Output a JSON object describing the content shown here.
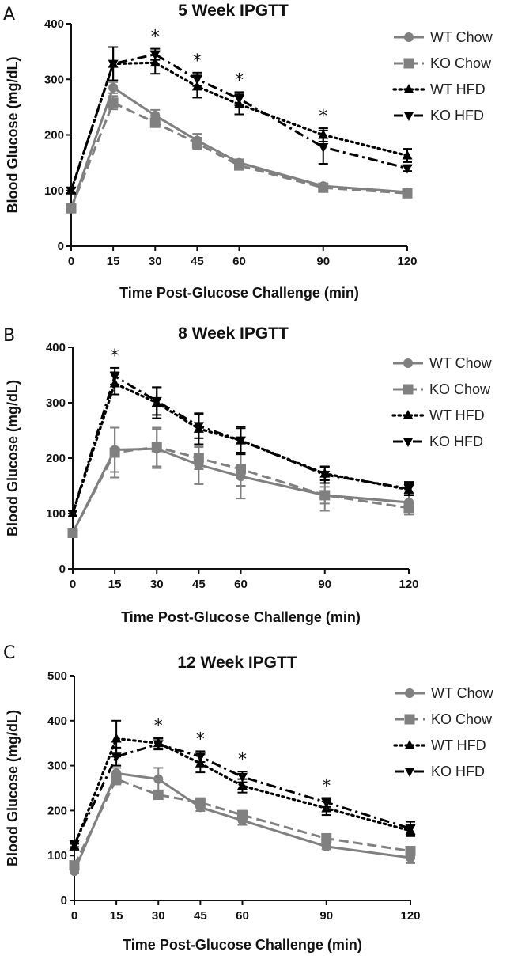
{
  "colors": {
    "wt_chow": "#808080",
    "ko_chow": "#808080",
    "wt_hfd": "#000000",
    "ko_hfd": "#000000"
  },
  "chart_data": [
    {
      "panel_label": "A",
      "type": "line",
      "title": "5 Week IPGTT",
      "xlabel": "Time Post-Glucose Challenge (min)",
      "ylabel": "Blood Glucose (mg/dL)",
      "x": [
        0,
        15,
        30,
        45,
        60,
        90,
        120
      ],
      "xticks": [
        "0",
        "15",
        "30",
        "45",
        "60",
        "90",
        "120"
      ],
      "ylim": [
        0,
        400
      ],
      "yticks": [
        "0",
        "100",
        "200",
        "300",
        "400"
      ],
      "legend_position": "top-right",
      "series": [
        {
          "name": "WT Chow",
          "marker": "circle",
          "dash": "solid",
          "color": "#808080",
          "values": [
            68,
            285,
            235,
            190,
            150,
            108,
            97
          ],
          "err": [
            4,
            10,
            10,
            12,
            6,
            4,
            3
          ]
        },
        {
          "name": "KO Chow",
          "marker": "square",
          "dash": "dashed",
          "color": "#808080",
          "values": [
            68,
            258,
            222,
            185,
            145,
            105,
            95
          ],
          "err": [
            4,
            12,
            8,
            10,
            6,
            4,
            3
          ]
        },
        {
          "name": "WT HFD",
          "marker": "triangle-up",
          "dash": "dotted",
          "color": "#000000",
          "values": [
            100,
            328,
            330,
            287,
            255,
            200,
            163
          ],
          "err": [
            5,
            30,
            20,
            20,
            18,
            12,
            12
          ]
        },
        {
          "name": "KO HFD",
          "marker": "triangle-down",
          "dash": "dashdot",
          "color": "#000000",
          "values": [
            100,
            328,
            345,
            300,
            265,
            178,
            140
          ],
          "err": [
            5,
            30,
            10,
            12,
            12,
            30,
            5
          ]
        }
      ],
      "significance": [
        30,
        45,
        60,
        90
      ],
      "significance_mark": "*"
    },
    {
      "panel_label": "B",
      "type": "line",
      "title": "8 Week IPGTT",
      "xlabel": "Time Post-Glucose Challenge (min)",
      "ylabel": "Blood Glucose (mg/dL)",
      "x": [
        0,
        15,
        30,
        45,
        60,
        90,
        120
      ],
      "xticks": [
        "0",
        "15",
        "30",
        "45",
        "60",
        "90",
        "120"
      ],
      "ylim": [
        0,
        400
      ],
      "yticks": [
        "0",
        "100",
        "200",
        "300",
        "400"
      ],
      "legend_position": "top-right",
      "series": [
        {
          "name": "WT Chow",
          "marker": "circle",
          "dash": "solid",
          "color": "#808080",
          "values": [
            65,
            215,
            217,
            188,
            167,
            133,
            120
          ],
          "err": [
            4,
            40,
            35,
            35,
            40,
            28,
            15
          ]
        },
        {
          "name": "KO Chow",
          "marker": "square",
          "dash": "dashed",
          "color": "#808080",
          "values": [
            65,
            210,
            220,
            200,
            180,
            133,
            110
          ],
          "err": [
            4,
            45,
            35,
            20,
            30,
            15,
            12
          ]
        },
        {
          "name": "WT HFD",
          "marker": "triangle-up",
          "dash": "dotted",
          "color": "#000000",
          "values": [
            100,
            335,
            300,
            253,
            232,
            172,
            143
          ],
          "err": [
            5,
            20,
            28,
            28,
            25,
            12,
            10
          ]
        },
        {
          "name": "KO HFD",
          "marker": "triangle-down",
          "dash": "dashdot",
          "color": "#000000",
          "values": [
            100,
            348,
            303,
            258,
            232,
            170,
            145
          ],
          "err": [
            5,
            15,
            25,
            22,
            22,
            15,
            12
          ]
        }
      ],
      "significance": [
        15
      ],
      "significance_mark": "*"
    },
    {
      "panel_label": "C",
      "type": "line",
      "title": "12 Week IPGTT",
      "xlabel": "Time Post-Glucose Challenge (min)",
      "ylabel": "Blood Glucose (mg/dL)",
      "x": [
        0,
        15,
        30,
        45,
        60,
        90,
        120
      ],
      "xticks": [
        "0",
        "15",
        "30",
        "45",
        "60",
        "90",
        "120"
      ],
      "ylim": [
        0,
        500
      ],
      "yticks": [
        "0",
        "100",
        "200",
        "300",
        "400",
        "500"
      ],
      "legend_position": "top-right",
      "series": [
        {
          "name": "WT Chow",
          "marker": "circle",
          "dash": "solid",
          "color": "#808080",
          "values": [
            65,
            283,
            270,
            207,
            178,
            120,
            95
          ],
          "err": [
            4,
            12,
            25,
            8,
            10,
            6,
            12
          ]
        },
        {
          "name": "KO Chow",
          "marker": "square",
          "dash": "dashed",
          "color": "#808080",
          "values": [
            78,
            270,
            235,
            218,
            190,
            138,
            110
          ],
          "err": [
            4,
            12,
            8,
            8,
            8,
            10,
            8
          ]
        },
        {
          "name": "WT HFD",
          "marker": "triangle-up",
          "dash": "dotted",
          "color": "#000000",
          "values": [
            120,
            360,
            350,
            305,
            255,
            205,
            155
          ],
          "err": [
            6,
            40,
            12,
            20,
            15,
            15,
            12
          ]
        },
        {
          "name": "KO HFD",
          "marker": "triangle-down",
          "dash": "dashdot",
          "color": "#000000",
          "values": [
            125,
            320,
            348,
            320,
            275,
            218,
            160
          ],
          "err": [
            6,
            20,
            12,
            12,
            12,
            10,
            15
          ]
        }
      ],
      "significance": [
        30,
        45,
        60,
        90
      ],
      "significance_mark": "*"
    }
  ]
}
